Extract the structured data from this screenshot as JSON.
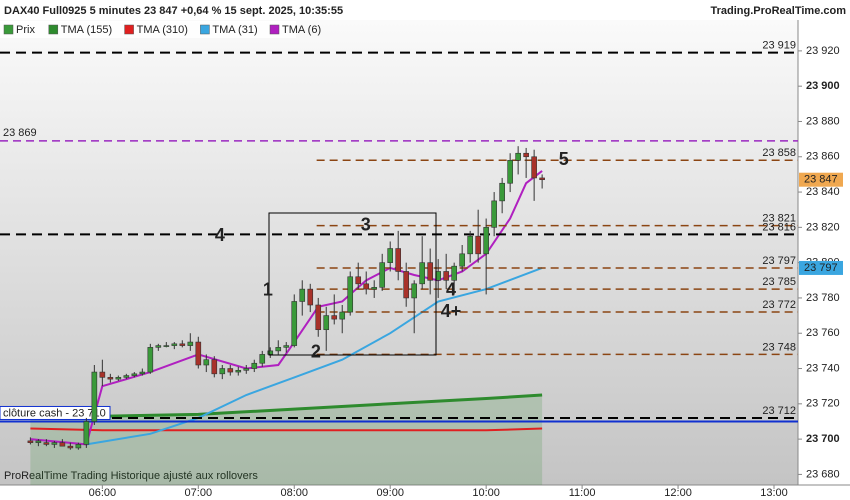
{
  "chart_data": {
    "type": "candlestick",
    "title": "DAX40 Full0925 5 minutes 23 847 +0,64 % 15 sept. 2025, 10:35:55",
    "source": "Trading.ProRealTime.com",
    "footer": "ProRealTime Trading  Historique ajusté aux rollovers",
    "price_name": "Prix",
    "up_color": "#3a9a3a",
    "down_color": "#a8322a",
    "xlim": [
      296,
      795
    ],
    "ylim": [
      23674,
      23937.5
    ],
    "xticks": [
      {
        "value": 360,
        "label": "06:00"
      },
      {
        "value": 420,
        "label": "07:00"
      },
      {
        "value": 480,
        "label": "08:00"
      },
      {
        "value": 540,
        "label": "09:00"
      },
      {
        "value": 600,
        "label": "10:00"
      },
      {
        "value": 660,
        "label": "11:00"
      },
      {
        "value": 720,
        "label": "12:00"
      },
      {
        "value": 780,
        "label": "13:00"
      }
    ],
    "yticks": [
      {
        "value": 23680,
        "label": "23 680"
      },
      {
        "value": 23700,
        "label": "23 700"
      },
      {
        "value": 23720,
        "label": "23 720"
      },
      {
        "value": 23740,
        "label": "23 740"
      },
      {
        "value": 23760,
        "label": "23 760"
      },
      {
        "value": 23780,
        "label": "23 780"
      },
      {
        "value": 23800,
        "label": "23 800"
      },
      {
        "value": 23820,
        "label": "23 820"
      },
      {
        "value": 23840,
        "label": "23 840"
      },
      {
        "value": 23860,
        "label": "23 860"
      },
      {
        "value": 23880,
        "label": "23 880"
      },
      {
        "value": 23900,
        "label": "23 900"
      },
      {
        "value": 23920,
        "label": "23 920"
      }
    ],
    "bold_yticks": [
      23700,
      23900
    ],
    "x": [
      315,
      320,
      325,
      330,
      335,
      340,
      345,
      350,
      355,
      360,
      365,
      370,
      375,
      380,
      385,
      390,
      395,
      400,
      405,
      410,
      415,
      420,
      425,
      430,
      435,
      440,
      445,
      450,
      455,
      460,
      465,
      470,
      475,
      480,
      485,
      490,
      495,
      500,
      505,
      510,
      515,
      520,
      525,
      530,
      535,
      540,
      545,
      550,
      555,
      560,
      565,
      570,
      575,
      580,
      585,
      590,
      595,
      600,
      605,
      610,
      615,
      620,
      625,
      630,
      635
    ],
    "ohlc": [
      [
        23699,
        23701,
        23697,
        23698
      ],
      [
        23698,
        23700,
        23696,
        23699
      ],
      [
        23698,
        23700,
        23696,
        23697
      ],
      [
        23697,
        23699,
        23695,
        23698
      ],
      [
        23698,
        23700,
        23696,
        23696
      ],
      [
        23696,
        23698,
        23694,
        23695
      ],
      [
        23695,
        23698,
        23694,
        23697
      ],
      [
        23697,
        23712,
        23695,
        23710
      ],
      [
        23710,
        23742,
        23708,
        23738
      ],
      [
        23738,
        23745,
        23730,
        23735
      ],
      [
        23735,
        23737,
        23732,
        23734
      ],
      [
        23734,
        23736,
        23733,
        23735
      ],
      [
        23735,
        23737,
        23734,
        23736
      ],
      [
        23736,
        23738,
        23735,
        23737
      ],
      [
        23737,
        23740,
        23736,
        23738
      ],
      [
        23738,
        23754,
        23737,
        23752
      ],
      [
        23752,
        23754,
        23750,
        23753
      ],
      [
        23753,
        23755,
        23752,
        23753
      ],
      [
        23753,
        23755,
        23751,
        23754
      ],
      [
        23754,
        23756,
        23752,
        23753
      ],
      [
        23753,
        23760,
        23750,
        23755
      ],
      [
        23755,
        23758,
        23740,
        23742
      ],
      [
        23742,
        23748,
        23738,
        23745
      ],
      [
        23745,
        23747,
        23735,
        23737
      ],
      [
        23737,
        23742,
        23734,
        23740
      ],
      [
        23740,
        23742,
        23736,
        23738
      ],
      [
        23738,
        23741,
        23736,
        23739
      ],
      [
        23739,
        23742,
        23737,
        23740
      ],
      [
        23740,
        23745,
        23738,
        23743
      ],
      [
        23743,
        23750,
        23741,
        23748
      ],
      [
        23748,
        23752,
        23746,
        23750
      ],
      [
        23750,
        23756,
        23748,
        23752
      ],
      [
        23752,
        23755,
        23749,
        23753
      ],
      [
        23753,
        23782,
        23752,
        23778
      ],
      [
        23778,
        23790,
        23770,
        23785
      ],
      [
        23785,
        23788,
        23772,
        23776
      ],
      [
        23776,
        23780,
        23758,
        23762
      ],
      [
        23762,
        23775,
        23750,
        23770
      ],
      [
        23770,
        23782,
        23765,
        23768
      ],
      [
        23768,
        23776,
        23760,
        23772
      ],
      [
        23772,
        23795,
        23770,
        23792
      ],
      [
        23792,
        23800,
        23785,
        23788
      ],
      [
        23788,
        23795,
        23782,
        23785
      ],
      [
        23785,
        23790,
        23780,
        23786
      ],
      [
        23786,
        23805,
        23784,
        23800
      ],
      [
        23800,
        23812,
        23795,
        23808
      ],
      [
        23808,
        23818,
        23790,
        23795
      ],
      [
        23795,
        23800,
        23775,
        23780
      ],
      [
        23780,
        23790,
        23760,
        23788
      ],
      [
        23788,
        23815,
        23785,
        23800
      ],
      [
        23800,
        23808,
        23782,
        23790
      ],
      [
        23790,
        23802,
        23780,
        23795
      ],
      [
        23795,
        23805,
        23785,
        23790
      ],
      [
        23790,
        23800,
        23782,
        23798
      ],
      [
        23798,
        23810,
        23795,
        23805
      ],
      [
        23805,
        23818,
        23800,
        23815
      ],
      [
        23815,
        23830,
        23800,
        23805
      ],
      [
        23805,
        23825,
        23782,
        23820
      ],
      [
        23820,
        23840,
        23815,
        23835
      ],
      [
        23835,
        23848,
        23828,
        23845
      ],
      [
        23845,
        23862,
        23840,
        23858
      ],
      [
        23858,
        23866,
        23850,
        23862
      ],
      [
        23862,
        23865,
        23848,
        23860
      ],
      [
        23860,
        23864,
        23835,
        23848
      ],
      [
        23848,
        23850,
        23842,
        23847
      ]
    ],
    "series": [
      {
        "name": "TMA (155)",
        "color": "#2e8b2e",
        "fill": true,
        "x": [
          315,
          360,
          420,
          480,
          540,
          600,
          635
        ],
        "values": [
          23713,
          23713,
          23714,
          23717,
          23720,
          23723,
          23725
        ]
      },
      {
        "name": "TMA (310)",
        "color": "#e02020",
        "x": [
          315,
          360,
          420,
          480,
          540,
          600,
          635
        ],
        "values": [
          23706,
          23705,
          23705,
          23705,
          23705,
          23705,
          23706
        ]
      },
      {
        "name": "TMA (31)",
        "color": "#3aa6e0",
        "x": [
          350,
          390,
          420,
          450,
          480,
          510,
          540,
          570,
          600,
          635
        ],
        "values": [
          23697,
          23703,
          23712,
          23725,
          23735,
          23745,
          23760,
          23778,
          23785,
          23797
        ]
      },
      {
        "name": "TMA (6)",
        "color": "#b020c0",
        "x": [
          315,
          350,
          360,
          390,
          420,
          450,
          470,
          480,
          495,
          510,
          525,
          540,
          555,
          570,
          585,
          600,
          615,
          625,
          635
        ],
        "values": [
          23700,
          23697,
          23730,
          23738,
          23748,
          23740,
          23742,
          23755,
          23775,
          23778,
          23790,
          23797,
          23793,
          23790,
          23795,
          23805,
          23825,
          23845,
          23852
        ]
      }
    ],
    "levels": [
      {
        "value": 23919,
        "label": "23 919",
        "color": "#000000"
      },
      {
        "value": 23869,
        "label": "23 869",
        "color": "#9a28c0",
        "label_side": "left"
      },
      {
        "value": 23858,
        "label": "23 858",
        "color": "#8b4513",
        "start": 494
      },
      {
        "value": 23821,
        "label": "23 821",
        "color": "#8b4513",
        "start": 494
      },
      {
        "value": 23816,
        "label": "23 816",
        "color": "#000000"
      },
      {
        "value": 23797,
        "label": "23 797",
        "color": "#8b4513",
        "start": 494
      },
      {
        "value": 23785,
        "label": "23 785",
        "color": "#8b4513",
        "start": 494
      },
      {
        "value": 23772,
        "label": "23 772",
        "color": "#8b4513",
        "start": 494
      },
      {
        "value": 23748,
        "label": "23 748",
        "color": "#8b4513",
        "start": 494
      },
      {
        "value": 23712,
        "label": "23 712",
        "color": "#000000"
      }
    ],
    "cash_close": {
      "value": 23710,
      "label": "clôture cash -  23 710",
      "color": "#1030d0"
    },
    "price_boxes": [
      {
        "value": 23847,
        "label": "23 847",
        "color": "#f0a850",
        "text_color": "#222222"
      },
      {
        "value": 23797,
        "label": "23 797",
        "color": "#3aa6e0",
        "text_color": "#ffffff"
      }
    ],
    "annotations": [
      {
        "text": "1",
        "x": 463.5,
        "y": 23784,
        "color": "#8b4513"
      },
      {
        "text": "2",
        "x": 493.5,
        "y": 23749,
        "color": "#8b4513"
      },
      {
        "text": "3",
        "x": 524.75,
        "y": 23821,
        "color": "#8b4513"
      },
      {
        "text": "4",
        "x": 433.5,
        "y": 23815,
        "color": "#000000"
      },
      {
        "text": "4",
        "x": 578,
        "y": 23784,
        "color": "#8b4513"
      },
      {
        "text": "4+",
        "x": 578,
        "y": 23772,
        "color": "#8b4513"
      },
      {
        "text": "5",
        "x": 648.5,
        "y": 23858,
        "color": "#8b4513"
      }
    ]
  }
}
